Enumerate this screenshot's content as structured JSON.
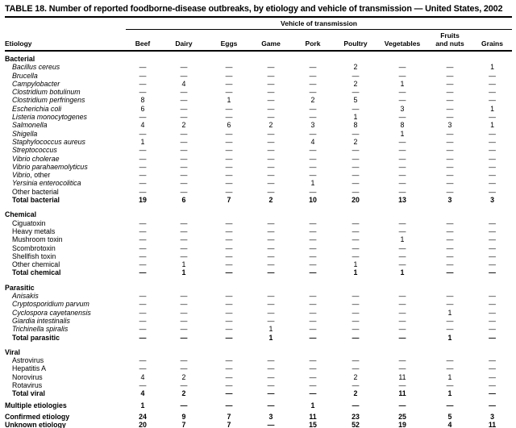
{
  "title": "TABLE 18. Number of reported foodborne-disease outbreaks, by etiology and vehicle of transmission — United States, 2002",
  "table": {
    "spanner_label": "Vehicle of transmission",
    "etiology_header": "Etiology",
    "columns": [
      {
        "top": "",
        "label": "Beef"
      },
      {
        "top": "",
        "label": "Dairy"
      },
      {
        "top": "",
        "label": "Eggs"
      },
      {
        "top": "",
        "label": "Game"
      },
      {
        "top": "",
        "label": "Pork"
      },
      {
        "top": "",
        "label": "Poultry"
      },
      {
        "top": "",
        "label": "Vegetables"
      },
      {
        "top": "Fruits",
        "label": "and nuts"
      },
      {
        "top": "",
        "label": "Grains"
      }
    ],
    "sections": [
      {
        "header": "Bacterial",
        "rows": [
          {
            "em": "Bacillus cereus",
            "values": [
              "—",
              "—",
              "—",
              "—",
              "—",
              "2",
              "—",
              "—",
              "1"
            ]
          },
          {
            "em": "Brucella",
            "values": [
              "—",
              "—",
              "—",
              "—",
              "—",
              "—",
              "—",
              "—",
              "—"
            ]
          },
          {
            "em": "Campylobacter",
            "values": [
              "—",
              "4",
              "—",
              "—",
              "—",
              "2",
              "1",
              "—",
              "—"
            ]
          },
          {
            "em": "Clostridium botulinum",
            "values": [
              "—",
              "—",
              "—",
              "—",
              "—",
              "—",
              "—",
              "—",
              "—"
            ]
          },
          {
            "em": "Clostridium perfringens",
            "values": [
              "8",
              "—",
              "1",
              "—",
              "2",
              "5",
              "—",
              "—",
              "—"
            ]
          },
          {
            "em": "Escherichia coli",
            "values": [
              "6",
              "—",
              "—",
              "—",
              "—",
              "—",
              "3",
              "—",
              "1"
            ]
          },
          {
            "em": "Listeria monocytogenes",
            "values": [
              "—",
              "—",
              "—",
              "—",
              "—",
              "1",
              "—",
              "—",
              "—"
            ]
          },
          {
            "em": "Salmonella",
            "values": [
              "4",
              "2",
              "6",
              "2",
              "3",
              "8",
              "8",
              "3",
              "1"
            ]
          },
          {
            "em": "Shigella",
            "values": [
              "—",
              "—",
              "—",
              "—",
              "—",
              "—",
              "1",
              "—",
              "—"
            ]
          },
          {
            "em": "Staphylococcus aureus",
            "values": [
              "1",
              "—",
              "—",
              "—",
              "4",
              "2",
              "—",
              "—",
              "—"
            ]
          },
          {
            "em": "Streptococcus",
            "values": [
              "—",
              "—",
              "—",
              "—",
              "—",
              "—",
              "—",
              "—",
              "—"
            ]
          },
          {
            "em": "Vibrio cholerae",
            "values": [
              "—",
              "—",
              "—",
              "—",
              "—",
              "—",
              "—",
              "—",
              "—"
            ]
          },
          {
            "em": "Vibrio parahaemolyticus",
            "values": [
              "—",
              "—",
              "—",
              "—",
              "—",
              "—",
              "—",
              "—",
              "—"
            ]
          },
          {
            "em": "Vibrio",
            "label": ", other",
            "values": [
              "—",
              "—",
              "—",
              "—",
              "—",
              "—",
              "—",
              "—",
              "—"
            ]
          },
          {
            "em": "Yersinia enterocolitica",
            "values": [
              "—",
              "—",
              "—",
              "—",
              "1",
              "—",
              "—",
              "—",
              "—"
            ]
          },
          {
            "label": "Other bacterial",
            "values": [
              "—",
              "—",
              "—",
              "—",
              "—",
              "—",
              "—",
              "—",
              "—"
            ]
          },
          {
            "label": "Total bacterial",
            "bold": true,
            "values": [
              "19",
              "6",
              "7",
              "2",
              "10",
              "20",
              "13",
              "3",
              "3"
            ]
          }
        ]
      },
      {
        "header": "Chemical",
        "rows": [
          {
            "label": "Ciguatoxin",
            "values": [
              "—",
              "—",
              "—",
              "—",
              "—",
              "—",
              "—",
              "—",
              "—"
            ]
          },
          {
            "label": "Heavy metals",
            "values": [
              "—",
              "—",
              "—",
              "—",
              "—",
              "—",
              "—",
              "—",
              "—"
            ]
          },
          {
            "label": "Mushroom toxin",
            "values": [
              "—",
              "—",
              "—",
              "—",
              "—",
              "—",
              "1",
              "—",
              "—"
            ]
          },
          {
            "label": "Scombrotoxin",
            "values": [
              "—",
              "—",
              "—",
              "—",
              "—",
              "—",
              "—",
              "—",
              "—"
            ]
          },
          {
            "label": "Shellfish toxin",
            "values": [
              "—",
              "—",
              "—",
              "—",
              "—",
              "—",
              "—",
              "—",
              "—"
            ]
          },
          {
            "label": "Other chemical",
            "values": [
              "—",
              "1",
              "—",
              "—",
              "—",
              "1",
              "—",
              "—",
              "—"
            ]
          },
          {
            "label": "Total chemical",
            "bold": true,
            "values": [
              "—",
              "1",
              "—",
              "—",
              "—",
              "1",
              "1",
              "—",
              "—"
            ]
          }
        ]
      },
      {
        "header": "Parasitic",
        "rows": [
          {
            "em": "Anisakis",
            "values": [
              "—",
              "—",
              "—",
              "—",
              "—",
              "—",
              "—",
              "—",
              "—"
            ]
          },
          {
            "em": "Cryptosporidium parvum",
            "values": [
              "—",
              "—",
              "—",
              "—",
              "—",
              "—",
              "—",
              "—",
              "—"
            ]
          },
          {
            "em": "Cyclospora cayetanensis",
            "values": [
              "—",
              "—",
              "—",
              "—",
              "—",
              "—",
              "—",
              "1",
              "—"
            ]
          },
          {
            "em": "Giardia intestinalis",
            "values": [
              "—",
              "—",
              "—",
              "—",
              "—",
              "—",
              "—",
              "—",
              "—"
            ]
          },
          {
            "em": "Trichinella spiralis",
            "values": [
              "—",
              "—",
              "—",
              "1",
              "—",
              "—",
              "—",
              "—",
              "—"
            ]
          },
          {
            "label": "Total parasitic",
            "bold": true,
            "values": [
              "—",
              "—",
              "—",
              "1",
              "—",
              "—",
              "—",
              "1",
              "—"
            ]
          }
        ]
      },
      {
        "header": "Viral",
        "rows": [
          {
            "label": "Astrovirus",
            "values": [
              "—",
              "—",
              "—",
              "—",
              "—",
              "—",
              "—",
              "—",
              "—"
            ]
          },
          {
            "label": "Hepatitis A",
            "values": [
              "—",
              "—",
              "—",
              "—",
              "—",
              "—",
              "—",
              "—",
              "—"
            ]
          },
          {
            "label": "Norovirus",
            "values": [
              "4",
              "2",
              "—",
              "—",
              "—",
              "2",
              "11",
              "1",
              "—"
            ]
          },
          {
            "label": "Rotavirus",
            "values": [
              "—",
              "—",
              "—",
              "—",
              "—",
              "—",
              "—",
              "—",
              "—"
            ]
          },
          {
            "label": "Total viral",
            "bold": true,
            "values": [
              "4",
              "2",
              "—",
              "—",
              "—",
              "2",
              "11",
              "1",
              "—"
            ]
          }
        ]
      }
    ],
    "summary_rows": [
      {
        "label": "Multiple etiologies",
        "bold": true,
        "flush": true,
        "gap_before": true,
        "values": [
          "1",
          "—",
          "—",
          "—",
          "1",
          "—",
          "—",
          "—",
          "—"
        ]
      },
      {
        "label": "Confirmed etiology",
        "bold": true,
        "flush": true,
        "gap_before": true,
        "values": [
          "24",
          "9",
          "7",
          "3",
          "11",
          "23",
          "25",
          "5",
          "3"
        ]
      },
      {
        "label": "Unknown etiology",
        "bold": true,
        "flush": true,
        "values": [
          "20",
          "7",
          "7",
          "—",
          "15",
          "52",
          "19",
          "4",
          "11"
        ]
      },
      {
        "label": "Total 2002",
        "bold": true,
        "flush": true,
        "grand": true,
        "gap_before": true,
        "values": [
          "44",
          "16",
          "14",
          "3",
          "26",
          "75",
          "44",
          "9",
          "14"
        ]
      }
    ]
  }
}
